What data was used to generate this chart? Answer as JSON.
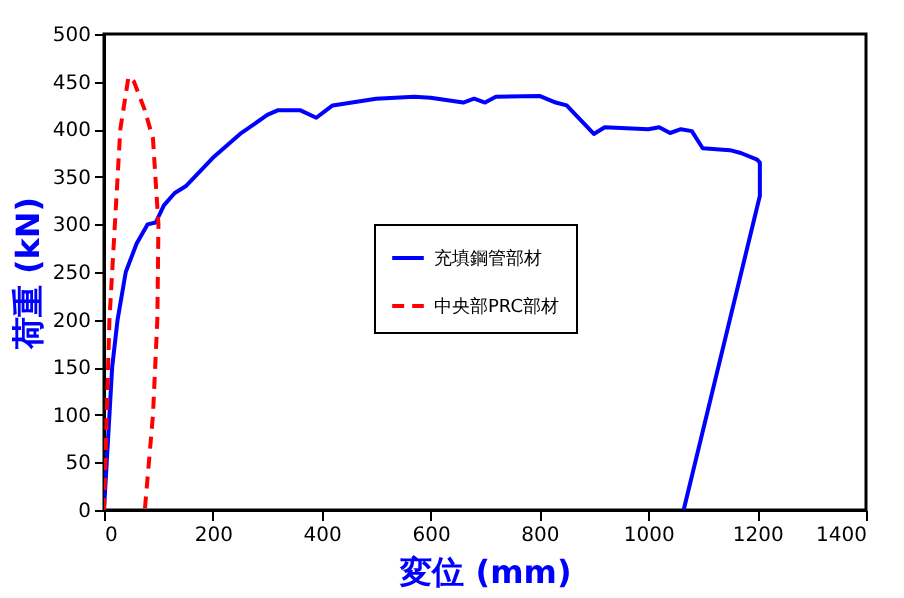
{
  "chart_data": {
    "type": "line",
    "xlabel": "変位 (mm)",
    "ylabel": "荷重 (kN)",
    "xlim": [
      0,
      1400
    ],
    "xticks": [
      0,
      200,
      400,
      600,
      800,
      1000,
      1200,
      1400
    ],
    "ylim": [
      0,
      500
    ],
    "yticks": [
      0,
      50,
      100,
      150,
      200,
      250,
      300,
      350,
      400,
      450,
      500
    ],
    "grid": false,
    "legend": "right",
    "marker": "none",
    "series": [
      {
        "name": "充填鋼管部材",
        "color": "#0000ff",
        "line_style": "solid",
        "x": [
          0,
          5,
          10,
          15,
          25,
          40,
          60,
          80,
          95,
          110,
          130,
          150,
          200,
          250,
          300,
          320,
          360,
          390,
          420,
          500,
          570,
          600,
          660,
          680,
          700,
          720,
          800,
          830,
          850,
          900,
          920,
          1000,
          1020,
          1040,
          1060,
          1080,
          1100,
          1150,
          1170,
          1200,
          1205,
          1205,
          1065
        ],
        "values": [
          0,
          50,
          100,
          150,
          200,
          250,
          280,
          300,
          302,
          320,
          333,
          340,
          370,
          395,
          415,
          420,
          420,
          412,
          425,
          432,
          434,
          433,
          428,
          432,
          428,
          434,
          435,
          428,
          425,
          395,
          402,
          400,
          402,
          396,
          400,
          398,
          380,
          378,
          375,
          368,
          365,
          330,
          0
        ]
      },
      {
        "name": "中央部PRC部材",
        "color": "#ff0000",
        "line_style": "dashed",
        "x": [
          0,
          5,
          10,
          20,
          30,
          45,
          55,
          75,
          90,
          100,
          98,
          90,
          75
        ],
        "values": [
          0,
          100,
          200,
          300,
          400,
          455,
          450,
          420,
          390,
          300,
          200,
          100,
          0
        ]
      }
    ]
  }
}
